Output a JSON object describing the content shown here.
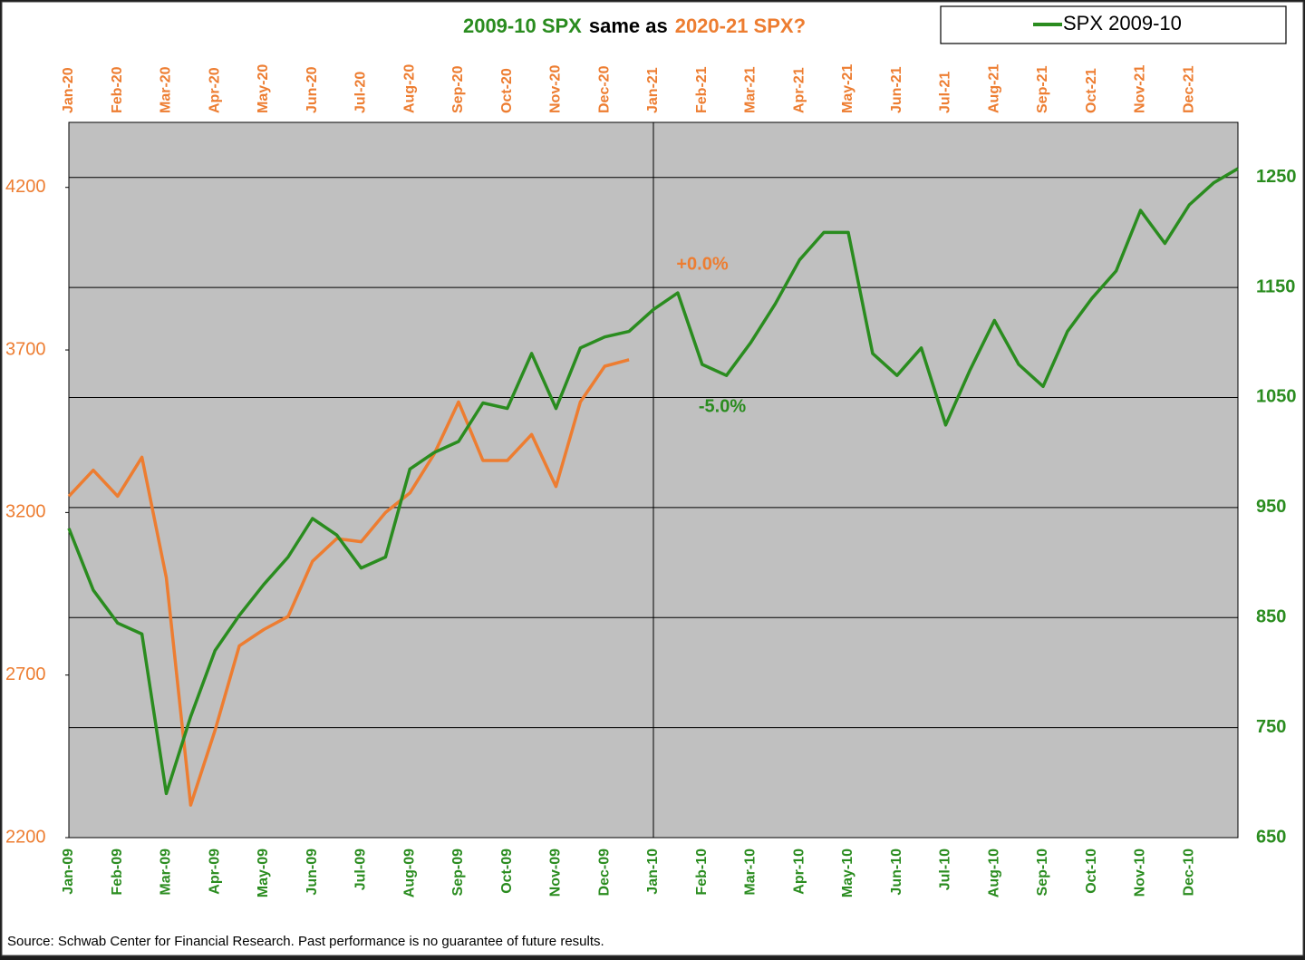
{
  "chart_data": {
    "type": "line",
    "title_parts": [
      {
        "text": "2009-10 SPX",
        "color": "#2a8c1f"
      },
      {
        "text": "same as",
        "color": "#000000"
      },
      {
        "text": "2020-21 SPX?",
        "color": "#ed7d31"
      }
    ],
    "x_bottom": [
      "Jan-09",
      "Feb-09",
      "Mar-09",
      "Apr-09",
      "May-09",
      "Jun-09",
      "Jul-09",
      "Aug-09",
      "Sep-09",
      "Oct-09",
      "Nov-09",
      "Dec-09",
      "Jan-10",
      "Feb-10",
      "Mar-10",
      "Apr-10",
      "May-10",
      "Jun-10",
      "Jul-10",
      "Aug-10",
      "Sep-10",
      "Oct-10",
      "Nov-10",
      "Dec-10"
    ],
    "x_top": [
      "Jan-20",
      "Feb-20",
      "Mar-20",
      "Apr-20",
      "May-20",
      "Jun-20",
      "Jul-20",
      "Aug-20",
      "Sep-20",
      "Oct-20",
      "Nov-20",
      "Dec-20",
      "Jan-21",
      "Feb-21",
      "Mar-21",
      "Apr-21",
      "May-21",
      "Jun-21",
      "Jul-21",
      "Aug-21",
      "Sep-21",
      "Oct-21",
      "Nov-21",
      "Dec-21"
    ],
    "series": [
      {
        "name": "SPX 2009-10",
        "color": "#2a8c1f",
        "axis": "y2",
        "values": [
          931,
          875,
          845,
          835,
          690,
          760,
          820,
          852,
          880,
          905,
          940,
          925,
          895,
          905,
          985,
          1000,
          1010,
          1045,
          1040,
          1090,
          1040,
          1095,
          1105,
          1110,
          1130,
          1145,
          1080,
          1070,
          1100,
          1135,
          1175,
          1200,
          1200,
          1090,
          1070,
          1095,
          1025,
          1075,
          1120,
          1080,
          1060,
          1110,
          1140,
          1165,
          1220,
          1190,
          1225,
          1245,
          1258
        ]
      },
      {
        "color": "#ed7d31",
        "axis": "y",
        "values": [
          3250,
          3330,
          3250,
          3370,
          3000,
          2300,
          2530,
          2790,
          2840,
          2880,
          3050,
          3120,
          3110,
          3200,
          3260,
          3380,
          3540,
          3360,
          3360,
          3440,
          3280,
          3540,
          3650,
          3670
        ]
      }
    ],
    "ylim": [
      2200,
      4400
    ],
    "yticks": [
      2200,
      2700,
      3200,
      3700,
      4200
    ],
    "y2lim": [
      650,
      1300
    ],
    "y2ticks": [
      650,
      750,
      850,
      950,
      1050,
      1150,
      1250
    ],
    "grid": true,
    "legend": "top-right",
    "annotations": [
      {
        "text": "+0.0%",
        "color": "#ed7d31"
      },
      {
        "text": "-5.0%",
        "color": "#2a8c1f"
      }
    ],
    "source": "Source: Schwab Center for Financial Research. Past performance is no guarantee of future results."
  }
}
